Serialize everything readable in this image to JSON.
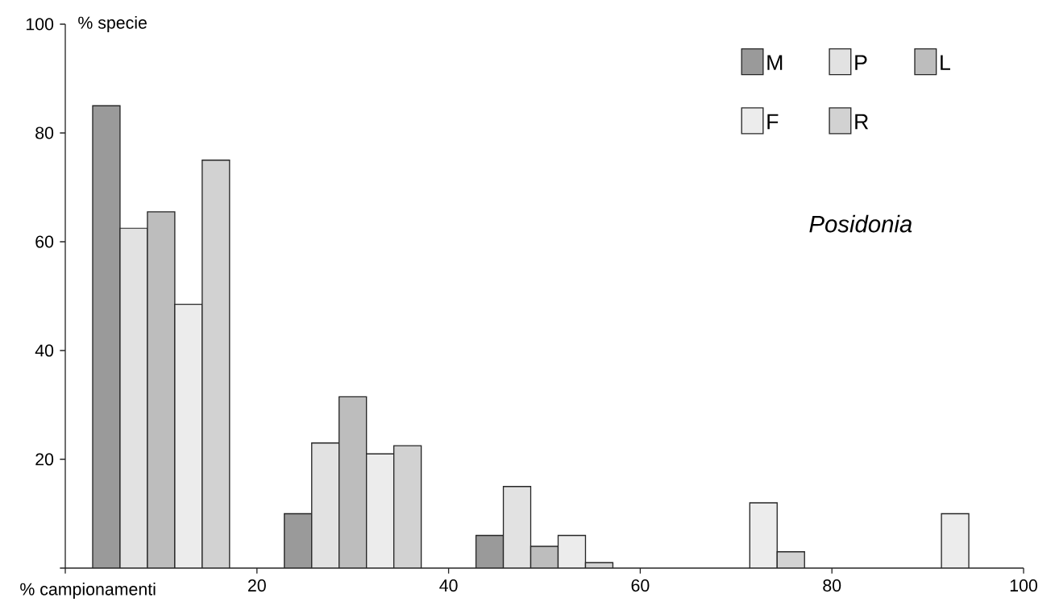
{
  "chart_data": {
    "type": "bar",
    "xlabel": "% campionamenti",
    "ylabel": "% specie",
    "x": [
      10,
      30,
      50,
      70,
      90
    ],
    "series": [
      {
        "name": "M",
        "color": "#9a9a9a",
        "values": [
          85,
          10,
          6,
          null,
          null
        ]
      },
      {
        "name": "P",
        "color": "#e2e2e2",
        "values": [
          62.5,
          23,
          15,
          null,
          null
        ]
      },
      {
        "name": "L",
        "color": "#bdbdbd",
        "values": [
          65.5,
          31.5,
          4,
          null,
          null
        ]
      },
      {
        "name": "F",
        "color": "#ececec",
        "values": [
          48.5,
          21,
          6,
          12,
          10
        ]
      },
      {
        "name": "R",
        "color": "#d2d2d2",
        "values": [
          75,
          22.5,
          1,
          3,
          null
        ]
      }
    ],
    "xlim": [
      0,
      100
    ],
    "ylim": [
      0,
      100
    ],
    "xticks": [
      {
        "value": 0,
        "label": null
      },
      20,
      40,
      60,
      80,
      100
    ],
    "yticks": [
      {
        "value": 0,
        "label": null
      },
      20,
      40,
      60,
      80,
      100
    ],
    "annotations": [
      "*Posidonia*"
    ],
    "legend": "top right",
    "grid": false
  }
}
